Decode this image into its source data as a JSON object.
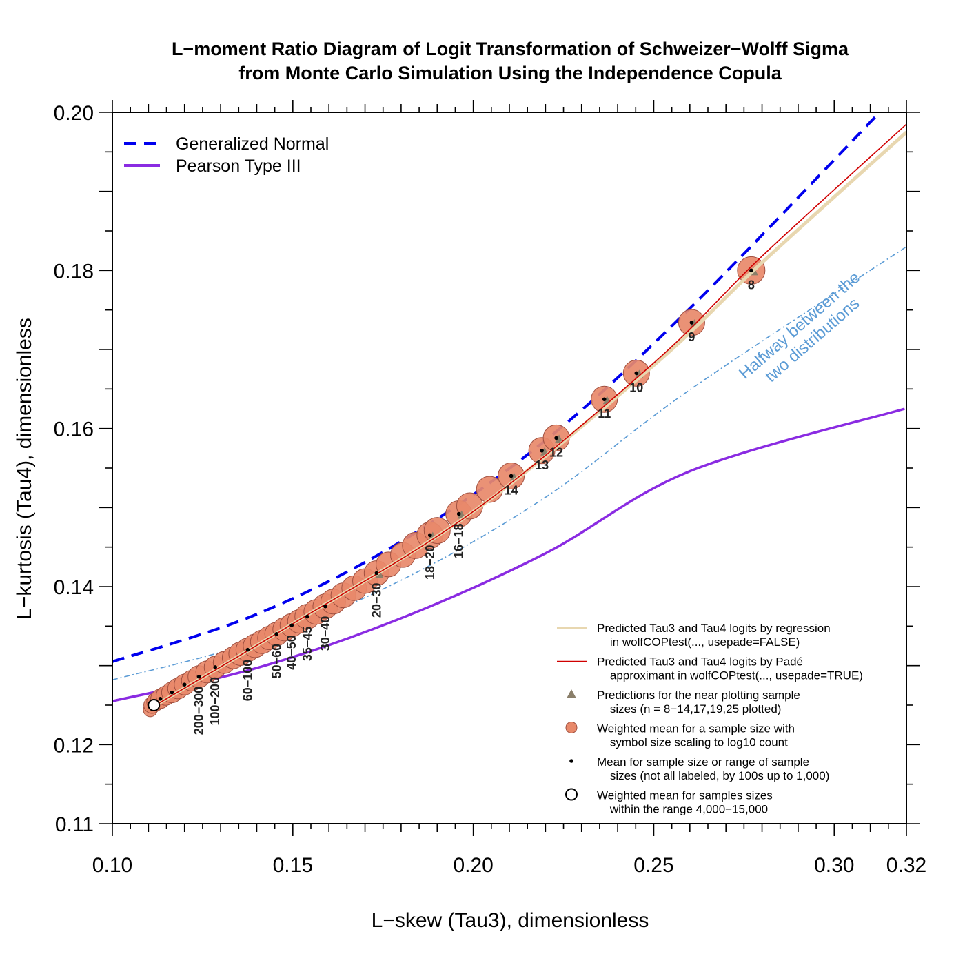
{
  "chart_data": {
    "type": "scatter",
    "title": "L−moment Ratio Diagram of Logit Transformation of Schweizer−Wolff Sigma",
    "subtitle": "from Monte Carlo Simulation Using the Independence Copula",
    "xlabel": "L−skew (Tau3), dimensionless",
    "ylabel": "L−kurtosis (Tau4), dimensionless",
    "xlim": [
      0.1,
      0.32
    ],
    "ylim": [
      0.11,
      0.2
    ],
    "xticks_major": [
      0.1,
      0.15,
      0.2,
      0.25,
      0.3,
      0.32
    ],
    "xtick_labels": [
      "0.10",
      "0.15",
      "0.20",
      "0.25",
      "0.30",
      "0.32"
    ],
    "yticks_major": [
      0.11,
      0.12,
      0.14,
      0.16,
      0.18,
      0.2
    ],
    "ytick_labels": [
      "0.11",
      "0.12",
      "0.14",
      "0.16",
      "0.18",
      "0.20"
    ],
    "grid": false,
    "colors": {
      "gno": "#0000ee",
      "pe3": "#8a2be2",
      "halfway": "#5b9bd5",
      "regression": "#e8d7b0",
      "pade": "#d00000",
      "marker_fill": "#e8896a",
      "marker_stroke": "#a05040",
      "triangle": "#8a7f6a"
    },
    "curves": [
      {
        "name": "Generalized Normal",
        "style": "dashed",
        "x": [
          0.1,
          0.14,
          0.18,
          0.22,
          0.26,
          0.3126
        ],
        "y": [
          0.1305,
          0.1365,
          0.1457,
          0.1585,
          0.1752,
          0.2
        ]
      },
      {
        "name": "Pearson Type III",
        "style": "solid",
        "x": [
          0.1,
          0.14,
          0.18,
          0.22,
          0.26,
          0.3195
        ],
        "y": [
          0.1255,
          0.1297,
          0.136,
          0.1442,
          0.1546,
          0.1625
        ]
      },
      {
        "name": "Halfway",
        "style": "dashdot",
        "x": [
          0.1,
          0.14,
          0.18,
          0.22,
          0.26,
          0.32
        ],
        "y": [
          0.1282,
          0.1331,
          0.1408,
          0.1513,
          0.1649,
          0.183
        ]
      },
      {
        "name": "Predicted Tau3 and Tau4 logits by regression",
        "style": "solid",
        "x": [
          0.112,
          0.15,
          0.2,
          0.25,
          0.28,
          0.32
        ],
        "y": [
          0.125,
          0.1353,
          0.1495,
          0.168,
          0.181,
          0.1975
        ]
      },
      {
        "name": "Predicted Tau3 and Tau4 logits by Pade approximant",
        "style": "solid",
        "x": [
          0.112,
          0.15,
          0.2,
          0.25,
          0.28,
          0.32
        ],
        "y": [
          0.125,
          0.1353,
          0.1495,
          0.1683,
          0.1818,
          0.1985
        ]
      }
    ],
    "weighted_means": [
      {
        "x": 0.277,
        "y": 0.18,
        "r": 20
      },
      {
        "x": 0.2605,
        "y": 0.1734,
        "r": 19
      },
      {
        "x": 0.2452,
        "y": 0.167,
        "r": 19
      },
      {
        "x": 0.2363,
        "y": 0.1637,
        "r": 19
      },
      {
        "x": 0.223,
        "y": 0.1588,
        "r": 19
      },
      {
        "x": 0.219,
        "y": 0.1572,
        "r": 19
      },
      {
        "x": 0.2105,
        "y": 0.154,
        "r": 19
      },
      {
        "x": 0.2045,
        "y": 0.1523,
        "r": 19
      },
      {
        "x": 0.199,
        "y": 0.1502,
        "r": 19
      },
      {
        "x": 0.196,
        "y": 0.1492,
        "r": 19
      },
      {
        "x": 0.19,
        "y": 0.1471,
        "r": 19
      },
      {
        "x": 0.188,
        "y": 0.1465,
        "r": 19
      },
      {
        "x": 0.184,
        "y": 0.1452,
        "r": 19
      },
      {
        "x": 0.1805,
        "y": 0.144,
        "r": 18
      },
      {
        "x": 0.1765,
        "y": 0.1428,
        "r": 18
      },
      {
        "x": 0.1732,
        "y": 0.1417,
        "r": 18
      },
      {
        "x": 0.17,
        "y": 0.1407,
        "r": 18
      },
      {
        "x": 0.167,
        "y": 0.1398,
        "r": 18
      },
      {
        "x": 0.164,
        "y": 0.1389,
        "r": 18
      },
      {
        "x": 0.1612,
        "y": 0.1381,
        "r": 18
      },
      {
        "x": 0.159,
        "y": 0.1375,
        "r": 18
      },
      {
        "x": 0.1565,
        "y": 0.1368,
        "r": 18
      },
      {
        "x": 0.154,
        "y": 0.1362,
        "r": 18
      },
      {
        "x": 0.1518,
        "y": 0.1356,
        "r": 17
      },
      {
        "x": 0.1497,
        "y": 0.1351,
        "r": 17
      },
      {
        "x": 0.1477,
        "y": 0.1346,
        "r": 17
      },
      {
        "x": 0.1455,
        "y": 0.134,
        "r": 17
      },
      {
        "x": 0.1435,
        "y": 0.1335,
        "r": 17
      },
      {
        "x": 0.1415,
        "y": 0.133,
        "r": 17
      },
      {
        "x": 0.1395,
        "y": 0.1325,
        "r": 17
      },
      {
        "x": 0.1375,
        "y": 0.132,
        "r": 17
      },
      {
        "x": 0.1355,
        "y": 0.1315,
        "r": 17
      },
      {
        "x": 0.1335,
        "y": 0.131,
        "r": 16
      },
      {
        "x": 0.131,
        "y": 0.1304,
        "r": 16
      },
      {
        "x": 0.1285,
        "y": 0.1298,
        "r": 16
      },
      {
        "x": 0.1262,
        "y": 0.1292,
        "r": 16
      },
      {
        "x": 0.124,
        "y": 0.1286,
        "r": 16
      },
      {
        "x": 0.122,
        "y": 0.1281,
        "r": 15
      },
      {
        "x": 0.12,
        "y": 0.1276,
        "r": 15
      },
      {
        "x": 0.1182,
        "y": 0.1271,
        "r": 15
      },
      {
        "x": 0.1165,
        "y": 0.1266,
        "r": 15
      },
      {
        "x": 0.1148,
        "y": 0.1262,
        "r": 14
      },
      {
        "x": 0.1133,
        "y": 0.1258,
        "r": 14
      },
      {
        "x": 0.112,
        "y": 0.1254,
        "r": 13
      },
      {
        "x": 0.111,
        "y": 0.125,
        "r": 12
      },
      {
        "x": 0.1105,
        "y": 0.1244,
        "r": 10
      }
    ],
    "predictions_triangles": [
      {
        "x": 0.277,
        "y": 0.18
      },
      {
        "x": 0.2605,
        "y": 0.1734
      },
      {
        "x": 0.2452,
        "y": 0.167
      },
      {
        "x": 0.2363,
        "y": 0.1637
      },
      {
        "x": 0.223,
        "y": 0.1588
      },
      {
        "x": 0.219,
        "y": 0.1572
      },
      {
        "x": 0.2105,
        "y": 0.154
      },
      {
        "x": 0.196,
        "y": 0.1492
      },
      {
        "x": 0.188,
        "y": 0.1465
      },
      {
        "x": 0.1732,
        "y": 0.1417
      }
    ],
    "mean_dots": [
      {
        "x": 0.277,
        "y": 0.18
      },
      {
        "x": 0.2605,
        "y": 0.1734
      },
      {
        "x": 0.2452,
        "y": 0.167
      },
      {
        "x": 0.2363,
        "y": 0.1637
      },
      {
        "x": 0.223,
        "y": 0.1588
      },
      {
        "x": 0.219,
        "y": 0.1572
      },
      {
        "x": 0.2105,
        "y": 0.154
      },
      {
        "x": 0.196,
        "y": 0.1492
      },
      {
        "x": 0.188,
        "y": 0.1465
      },
      {
        "x": 0.1732,
        "y": 0.1417
      },
      {
        "x": 0.159,
        "y": 0.1375
      },
      {
        "x": 0.154,
        "y": 0.1362
      },
      {
        "x": 0.1497,
        "y": 0.1351
      },
      {
        "x": 0.1455,
        "y": 0.134
      },
      {
        "x": 0.1375,
        "y": 0.132
      },
      {
        "x": 0.1285,
        "y": 0.1298
      },
      {
        "x": 0.124,
        "y": 0.1286
      },
      {
        "x": 0.12,
        "y": 0.1276
      },
      {
        "x": 0.1165,
        "y": 0.1266
      },
      {
        "x": 0.1133,
        "y": 0.1258
      }
    ],
    "open_circle": {
      "x": 0.1115,
      "y": 0.125
    },
    "point_labels": [
      {
        "text": "8",
        "x": 0.277,
        "y": 0.18,
        "pos": "below"
      },
      {
        "text": "9",
        "x": 0.2605,
        "y": 0.1734,
        "pos": "below"
      },
      {
        "text": "10",
        "x": 0.2452,
        "y": 0.167,
        "pos": "below"
      },
      {
        "text": "11",
        "x": 0.2363,
        "y": 0.1637,
        "pos": "below"
      },
      {
        "text": "12",
        "x": 0.223,
        "y": 0.1588,
        "pos": "below"
      },
      {
        "text": "13",
        "x": 0.219,
        "y": 0.1572,
        "pos": "below"
      },
      {
        "text": "14",
        "x": 0.2105,
        "y": 0.154,
        "pos": "below"
      },
      {
        "text": "16−18",
        "x": 0.196,
        "y": 0.1492,
        "pos": "vertical"
      },
      {
        "text": "18−20",
        "x": 0.188,
        "y": 0.1465,
        "pos": "vertical"
      },
      {
        "text": "20−30",
        "x": 0.1732,
        "y": 0.1417,
        "pos": "vertical"
      },
      {
        "text": "30−40",
        "x": 0.159,
        "y": 0.1375,
        "pos": "vertical"
      },
      {
        "text": "35−45",
        "x": 0.154,
        "y": 0.1362,
        "pos": "vertical"
      },
      {
        "text": "40−50",
        "x": 0.1497,
        "y": 0.1351,
        "pos": "vertical"
      },
      {
        "text": "50−60",
        "x": 0.1455,
        "y": 0.134,
        "pos": "vertical"
      },
      {
        "text": "60−100",
        "x": 0.1375,
        "y": 0.132,
        "pos": "vertical"
      },
      {
        "text": "100−200",
        "x": 0.1285,
        "y": 0.1298,
        "pos": "vertical"
      },
      {
        "text": "200−300",
        "x": 0.124,
        "y": 0.1286,
        "pos": "vertical"
      }
    ],
    "annotation": {
      "lines": [
        "Halfway between the",
        "two distributions"
      ]
    },
    "legend_top": {
      "placement": "top-left",
      "items": [
        {
          "label": "Generalized Normal",
          "style": "dashed",
          "color": "#0000ee"
        },
        {
          "label": "Pearson Type III",
          "style": "solid",
          "color": "#8a2be2"
        }
      ]
    },
    "legend_bottom": {
      "placement": "bottom-right",
      "items": [
        {
          "symbol": "line",
          "color": "#e8d7b0",
          "lines": [
            "Predicted Tau3 and Tau4 logits by regression",
            "  in wolfCOPtest(..., usepade=FALSE)"
          ]
        },
        {
          "symbol": "line",
          "color": "#d00000",
          "lines": [
            "Predicted Tau3 and Tau4 logits by Padé",
            "  approximant in wolfCOPtest(..., usepade=TRUE)"
          ]
        },
        {
          "symbol": "triangle",
          "color": "#8a7f6a",
          "lines": [
            "Predictions for the near plotting sample",
            "  sizes (n = 8−14,17,19,25 plotted)"
          ]
        },
        {
          "symbol": "circle",
          "color": "#e8896a",
          "lines": [
            "Weighted mean for a sample size with",
            "  symbol size scaling to log10 count"
          ]
        },
        {
          "symbol": "dot",
          "color": "#000000",
          "lines": [
            "Mean for sample size or range of sample",
            "  sizes (not all labeled, by 100s up to 1,000)"
          ]
        },
        {
          "symbol": "open-circle",
          "color": "#000000",
          "lines": [
            "Weighted mean for samples sizes",
            "  within the range 4,000−15,000"
          ]
        }
      ]
    }
  }
}
